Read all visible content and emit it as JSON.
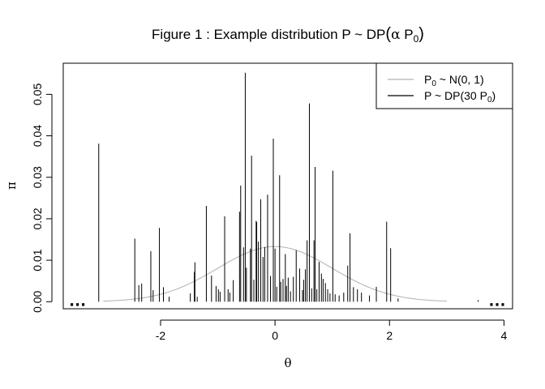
{
  "chart_data": {
    "type": "line",
    "title": "Figure 1 : Example distribution P ~ DP(α P₀)",
    "title_parts": {
      "main": "Figure 1 :  Example distribution P ~ DP",
      "alpha": "α",
      "p": " P",
      "sub": "0"
    },
    "xlabel": "θ",
    "ylabel": "π",
    "xlim": [
      -3.7,
      4.15
    ],
    "ylim": [
      -0.0017,
      0.0575
    ],
    "xticks": [
      -2,
      0,
      2,
      4
    ],
    "xtick_labels": [
      "-2",
      "0",
      "2",
      "4"
    ],
    "yticks": [
      0.0,
      0.01,
      0.02,
      0.03,
      0.04,
      0.05
    ],
    "ytick_labels": [
      "0.00",
      "0.01",
      "0.02",
      "0.03",
      "0.04",
      "0.05"
    ],
    "grid": false,
    "legend_position": "top-right",
    "series": [
      {
        "name": "P₀ ~ N(0, 1)",
        "legend_parts": {
          "p": "P",
          "sub": "0",
          "rest": " ~ N(0, 1)"
        },
        "kind": "density",
        "color": "#b0b0b0",
        "distribution": "normal",
        "mean": 0,
        "sd": 1,
        "peak": 0.0133,
        "support": [
          -3,
          3
        ]
      },
      {
        "name": "P ~ DP(30 P₀)",
        "legend_parts": {
          "p": "P ~ DP(30 P",
          "sub": "0",
          "rest": ")"
        },
        "kind": "stick",
        "color": "#000000",
        "x": [
          -3.08,
          -2.45,
          -2.38,
          -2.33,
          -2.17,
          -2.13,
          -2.02,
          -1.95,
          -1.85,
          -1.48,
          -1.41,
          -1.4,
          -1.36,
          -1.2,
          -1.11,
          -1.03,
          -0.99,
          -0.96,
          -0.88,
          -0.82,
          -0.79,
          -0.73,
          -0.62,
          -0.6,
          -0.55,
          -0.52,
          -0.5,
          -0.43,
          -0.41,
          -0.37,
          -0.33,
          -0.32,
          -0.29,
          -0.25,
          -0.21,
          -0.18,
          -0.13,
          -0.08,
          -0.03,
          0.0,
          0.03,
          0.08,
          0.1,
          0.14,
          0.18,
          0.2,
          0.23,
          0.27,
          0.32,
          0.37,
          0.43,
          0.48,
          0.5,
          0.53,
          0.56,
          0.6,
          0.64,
          0.68,
          0.7,
          0.73,
          0.77,
          0.81,
          0.84,
          0.88,
          0.92,
          0.96,
          1.01,
          1.05,
          1.12,
          1.2,
          1.27,
          1.31,
          1.37,
          1.44,
          1.51,
          1.65,
          1.77,
          1.95,
          2.02,
          2.15,
          3.55
        ],
        "y": [
          0.0381,
          0.0152,
          0.004,
          0.0044,
          0.0122,
          0.0028,
          0.0178,
          0.0035,
          0.0012,
          0.002,
          0.0072,
          0.0095,
          0.0012,
          0.0231,
          0.0063,
          0.0038,
          0.003,
          0.0024,
          0.0206,
          0.003,
          0.0022,
          0.0052,
          0.0217,
          0.028,
          0.0131,
          0.0552,
          0.0082,
          0.0128,
          0.0352,
          0.0053,
          0.0195,
          0.0192,
          0.0145,
          0.0247,
          0.0108,
          0.0132,
          0.0258,
          0.0062,
          0.0393,
          0.0128,
          0.0036,
          0.0305,
          0.0048,
          0.0055,
          0.0115,
          0.0038,
          0.0058,
          0.0025,
          0.006,
          0.0124,
          0.008,
          0.0028,
          0.0053,
          0.0078,
          0.0148,
          0.0478,
          0.0032,
          0.0148,
          0.0325,
          0.003,
          0.0096,
          0.0068,
          0.0055,
          0.0045,
          0.003,
          0.002,
          0.0316,
          0.0018,
          0.0015,
          0.0022,
          0.0087,
          0.0165,
          0.0035,
          0.003,
          0.0022,
          0.0015,
          0.0036,
          0.0193,
          0.0129,
          0.0008,
          0.0004
        ]
      }
    ],
    "ellipsis": {
      "text": "…",
      "x": [
        -3.45,
        3.88
      ],
      "y": 0.0
    }
  }
}
